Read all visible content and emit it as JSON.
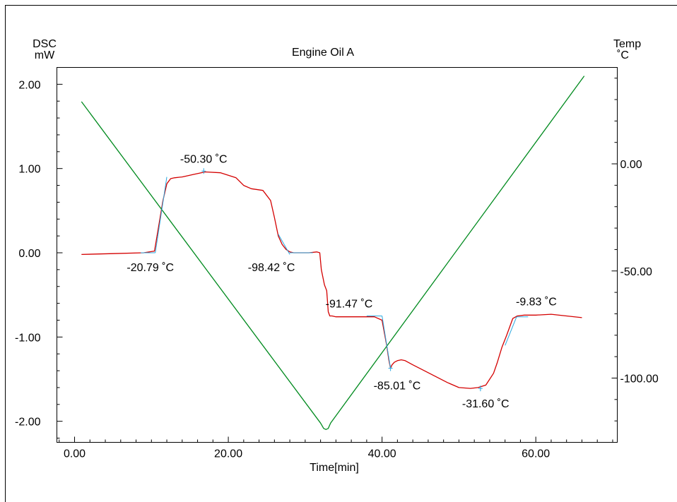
{
  "chart_data": {
    "type": "line",
    "title": "Engine Oil A",
    "xlabel": "Time[min]",
    "ylabel_left": [
      "DSC",
      "mW"
    ],
    "ylabel_right": [
      "Temp",
      "˚C"
    ],
    "xlim": [
      -2.3,
      70.6
    ],
    "ylim_left": [
      -2.25,
      2.2
    ],
    "ylim_right": [
      -130.0,
      45.0
    ],
    "xticks": [
      0,
      20,
      40,
      60
    ],
    "xtick_labels": [
      "0.00",
      "20.00",
      "40.00",
      "60.00"
    ],
    "xminor_step": 2,
    "yticks_left": [
      2,
      1,
      0,
      -1,
      -2
    ],
    "ytick_labels_left": [
      "2.00",
      "1.00",
      "0.00",
      "-1.00",
      "-2.00"
    ],
    "yminor_left_step": 0.2,
    "yticks_right": [
      0,
      -50,
      -100
    ],
    "ytick_labels_right": [
      "0.00",
      "-50.00",
      "-100.00"
    ],
    "yminor_right_step": 10,
    "grid": false,
    "colors": {
      "dsc": "#d40000",
      "temp": "#008a1e",
      "tangent": "#2aa8e0",
      "frame": "#000000"
    },
    "series": [
      {
        "name": "",
        "axis": "left",
        "color": "#d40000",
        "x": [
          0.9,
          5.0,
          9.0,
          10.4,
          11.0,
          11.5,
          12.0,
          12.5,
          13.0,
          14.0,
          15.5,
          17.0,
          19.0,
          21.0,
          22.0,
          23.0,
          24.5,
          25.5,
          26.0,
          26.5,
          27.0,
          27.5,
          28.0,
          28.5,
          29.5,
          30.5,
          31.5,
          31.9,
          32.1,
          32.5,
          32.8,
          33.0,
          33.2,
          33.5,
          34.0,
          35.0,
          37.0,
          39.0,
          40.0,
          40.3,
          40.6,
          40.9,
          41.1,
          41.3,
          41.6,
          42.0,
          42.5,
          43.0,
          44.0,
          45.5,
          47.0,
          48.5,
          50.0,
          51.5,
          52.5,
          53.5,
          54.5,
          55.0,
          55.6,
          56.2,
          57.0,
          57.6,
          58.5,
          60.0,
          62.0,
          64.0,
          66.0
        ],
        "values": [
          -0.02,
          -0.01,
          0.0,
          0.02,
          0.35,
          0.62,
          0.82,
          0.88,
          0.89,
          0.9,
          0.93,
          0.96,
          0.95,
          0.89,
          0.8,
          0.76,
          0.74,
          0.62,
          0.42,
          0.2,
          0.1,
          0.04,
          0.01,
          0.0,
          0.0,
          0.0,
          0.01,
          0.0,
          -0.2,
          -0.38,
          -0.45,
          -0.7,
          -0.75,
          -0.75,
          -0.76,
          -0.76,
          -0.76,
          -0.76,
          -0.8,
          -0.95,
          -1.1,
          -1.28,
          -1.37,
          -1.33,
          -1.3,
          -1.28,
          -1.27,
          -1.28,
          -1.33,
          -1.4,
          -1.47,
          -1.54,
          -1.6,
          -1.61,
          -1.6,
          -1.57,
          -1.43,
          -1.3,
          -1.12,
          -0.98,
          -0.78,
          -0.75,
          -0.74,
          -0.74,
          -0.73,
          -0.75,
          -0.77
        ]
      },
      {
        "name": "",
        "axis": "right",
        "color": "#008a1e",
        "x": [
          0.9,
          32.0,
          32.4,
          32.7,
          33.0,
          33.3,
          66.3
        ],
        "values": [
          29.0,
          -121.0,
          -123.5,
          -124.0,
          -123.5,
          -121.0,
          41.0
        ]
      }
    ],
    "tangents": [
      {
        "x": [
          8.6,
          10.5
        ],
        "y": [
          0.0,
          0.0
        ]
      },
      {
        "x": [
          10.5,
          12.0
        ],
        "y": [
          0.0,
          0.9
        ]
      },
      {
        "x": [
          26.5,
          28.0
        ],
        "y": [
          0.22,
          -0.02
        ]
      },
      {
        "x": [
          28.0,
          31.0
        ],
        "y": [
          0.0,
          0.0
        ]
      },
      {
        "x": [
          38.0,
          40.0
        ],
        "y": [
          -0.75,
          -0.75
        ]
      },
      {
        "x": [
          40.0,
          41.1
        ],
        "y": [
          -0.75,
          -1.37
        ]
      },
      {
        "x": [
          56.0,
          57.5
        ],
        "y": [
          -1.1,
          -0.76
        ]
      },
      {
        "x": [
          57.5,
          59.0
        ],
        "y": [
          -0.76,
          -0.76
        ]
      }
    ],
    "annotations": [
      {
        "text": "-50.30 ˚C",
        "x": 16.8,
        "y": 0.97,
        "dx": 0,
        "dy": -12,
        "anchor": "middle",
        "marker": true
      },
      {
        "text": "-20.79 ˚C",
        "x": 10.5,
        "y": 0.0,
        "dx": -7,
        "dy": 26,
        "anchor": "middle",
        "marker": false
      },
      {
        "text": "-98.42 ˚C",
        "x": 28.0,
        "y": 0.0,
        "dx": -26,
        "dy": 26,
        "anchor": "middle",
        "marker": false
      },
      {
        "text": "-91.47 ˚C",
        "x": 40.0,
        "y": -0.75,
        "dx": -80,
        "dy": -12,
        "anchor": "start",
        "marker": false
      },
      {
        "text": "-85.01 ˚C",
        "x": 41.1,
        "y": -1.37,
        "dx": -24,
        "dy": 30,
        "anchor": "start",
        "marker": true
      },
      {
        "text": "-31.60 ˚C",
        "x": 52.8,
        "y": -1.61,
        "dx": -26,
        "dy": 27,
        "anchor": "start",
        "marker": true
      },
      {
        "text": "-9.83 ˚C",
        "x": 57.5,
        "y": -0.76,
        "dx": -1,
        "dy": -16,
        "anchor": "start",
        "marker": false
      }
    ]
  }
}
